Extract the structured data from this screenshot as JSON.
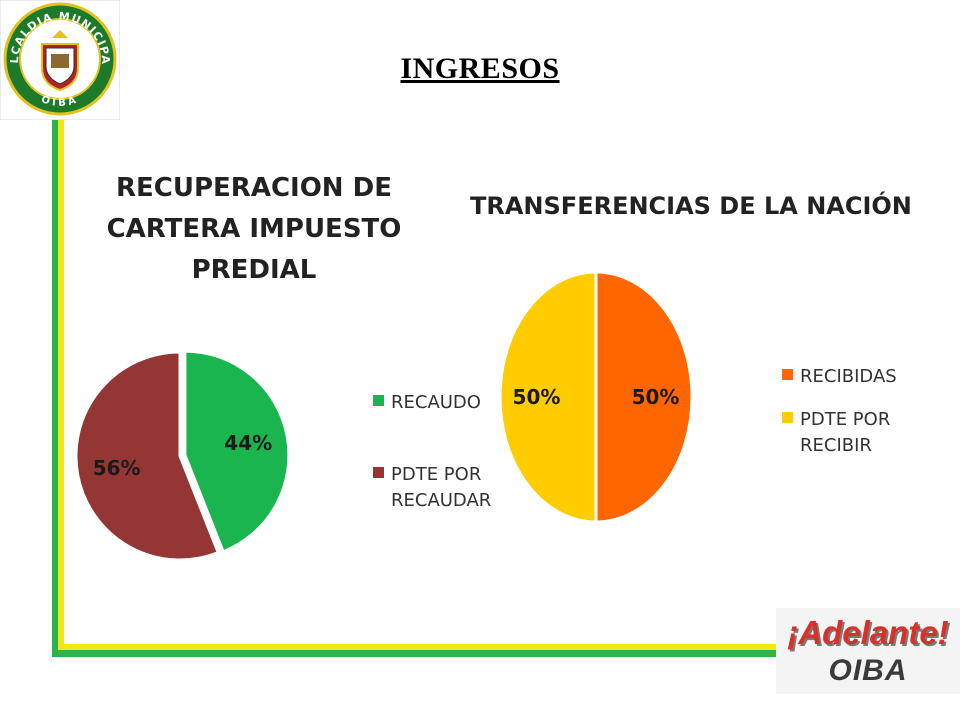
{
  "page": {
    "title": "INGRESOS",
    "logo": {
      "text": "ALCALDIA MUNICIPAL",
      "bottom_text": "OIBA"
    },
    "brand": {
      "line1": "¡Adelante!",
      "line2": "OIBA"
    }
  },
  "colors": {
    "frame_green": "#2db34a",
    "frame_yellow": "#f2e51b",
    "recaudo": "#1ab54f",
    "pdte_recaudar": "#943634",
    "recibidas": "#ff6600",
    "pdte_recibir": "#ffcc00"
  },
  "chart_data": [
    {
      "type": "pie",
      "title": [
        "RECUPERACION DE",
        "CARTERA IMPUESTO",
        "PREDIAL"
      ],
      "categories": [
        "RECAUDO",
        "PDTE POR RECAUDAR"
      ],
      "values": [
        44,
        56
      ],
      "labels": [
        "44%",
        "56%"
      ],
      "colors": [
        "#1ab54f",
        "#943634"
      ],
      "exploded": "RECAUDO",
      "legend": {
        "placement": "right",
        "entries": [
          "RECAUDO",
          "PDTE POR RECAUDAR"
        ]
      }
    },
    {
      "type": "pie",
      "title": [
        "TRANSFERENCIAS DE LA NACIÓN"
      ],
      "categories": [
        "RECIBIDAS",
        "PDTE POR RECIBIR"
      ],
      "values": [
        50,
        50
      ],
      "labels": [
        "50%",
        "50%"
      ],
      "colors": [
        "#ff6600",
        "#ffcc00"
      ],
      "legend": {
        "placement": "right",
        "entries": [
          "RECIBIDAS",
          "PDTE POR RECIBIR"
        ]
      }
    }
  ]
}
